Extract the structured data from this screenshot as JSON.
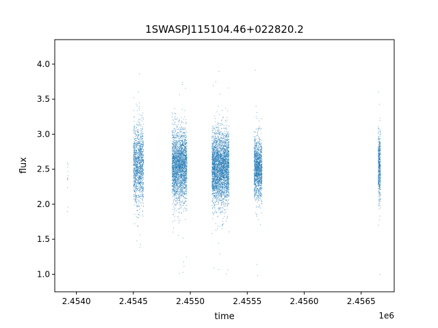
{
  "chart_data": {
    "type": "scatter",
    "title": "1SWASPJ115104.46+022820.2",
    "xlabel": "time",
    "ylabel": "flux",
    "x_offset_label": "1e6",
    "x_offset": 1000000,
    "xlim": [
      2.45381,
      2.45679
    ],
    "ylim": [
      0.75,
      4.35
    ],
    "x_ticks": [
      {
        "value": 2.454,
        "label": "2.4540"
      },
      {
        "value": 2.4545,
        "label": "2.4545"
      },
      {
        "value": 2.455,
        "label": "2.4550"
      },
      {
        "value": 2.4555,
        "label": "2.4555"
      },
      {
        "value": 2.456,
        "label": "2.4560"
      },
      {
        "value": 2.4565,
        "label": "2.4565"
      }
    ],
    "y_ticks": [
      {
        "value": 1.0,
        "label": "1.0"
      },
      {
        "value": 1.5,
        "label": "1.5"
      },
      {
        "value": 2.0,
        "label": "2.0"
      },
      {
        "value": 2.5,
        "label": "2.5"
      },
      {
        "value": 3.0,
        "label": "3.0"
      },
      {
        "value": 3.5,
        "label": "3.5"
      },
      {
        "value": 4.0,
        "label": "4.0"
      }
    ],
    "grid": false,
    "marker_color": "#1f77b4",
    "seasons": [
      {
        "x_start": 2.45392,
        "x_end": 2.45393,
        "n_points": 12,
        "y_center": 2.42,
        "y_spread": 0.22,
        "y_min": 1.88,
        "y_max": 2.97
      },
      {
        "x_start": 2.4545,
        "x_end": 2.45459,
        "n_points": 1300,
        "y_center": 2.56,
        "y_spread": 0.28,
        "y_min": 1.1,
        "y_max": 3.97
      },
      {
        "x_start": 2.45484,
        "x_end": 2.45497,
        "n_points": 2600,
        "y_center": 2.55,
        "y_spread": 0.26,
        "y_min": 0.93,
        "y_max": 3.87
      },
      {
        "x_start": 2.45519,
        "x_end": 2.45534,
        "n_points": 3200,
        "y_center": 2.52,
        "y_spread": 0.26,
        "y_min": 0.93,
        "y_max": 4.23
      },
      {
        "x_start": 2.45556,
        "x_end": 2.45563,
        "n_points": 1300,
        "y_center": 2.52,
        "y_spread": 0.22,
        "y_min": 0.96,
        "y_max": 3.97
      },
      {
        "x_start": 2.45665,
        "x_end": 2.45667,
        "n_points": 500,
        "y_center": 2.55,
        "y_spread": 0.25,
        "y_min": 0.9,
        "y_max": 3.98
      }
    ]
  }
}
